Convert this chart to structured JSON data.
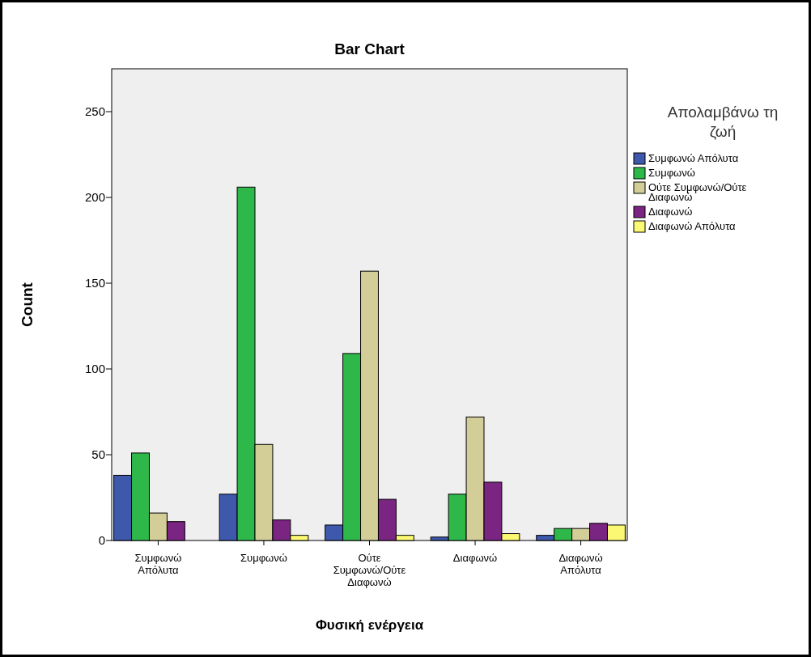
{
  "chart_data": {
    "type": "bar",
    "title": "Bar Chart",
    "xlabel": "Φυσική ενέργεια",
    "ylabel": "Count",
    "legend_title": "Απολαμβάνω τη ζωή",
    "categories": [
      "Συμφωνώ Απόλυτα",
      "Συμφωνώ",
      "Ούτε Συμφωνώ/Ούτε Διαφωνώ",
      "Διαφωνώ",
      "Διαφωνώ Απόλυτα"
    ],
    "series": [
      {
        "name": "Συμφωνώ Απόλυτα",
        "color": "#3e58ac",
        "values": [
          38,
          27,
          9,
          2,
          3
        ]
      },
      {
        "name": "Συμφωνώ",
        "color": "#2fb84a",
        "values": [
          51,
          206,
          109,
          27,
          7
        ]
      },
      {
        "name": "Ούτε Συμφωνώ/Ούτε Διαφωνώ",
        "color": "#d3ce97",
        "values": [
          16,
          56,
          157,
          72,
          7
        ]
      },
      {
        "name": "Διαφωνώ",
        "color": "#7b2582",
        "values": [
          11,
          12,
          24,
          34,
          10
        ]
      },
      {
        "name": "Διαφωνώ Απόλυτα",
        "color": "#fbf873",
        "values": [
          0,
          3,
          3,
          4,
          9
        ]
      }
    ],
    "ylim": [
      0,
      275
    ],
    "yticks": [
      0,
      50,
      100,
      150,
      200,
      250
    ],
    "grid": false,
    "legend": "right"
  }
}
